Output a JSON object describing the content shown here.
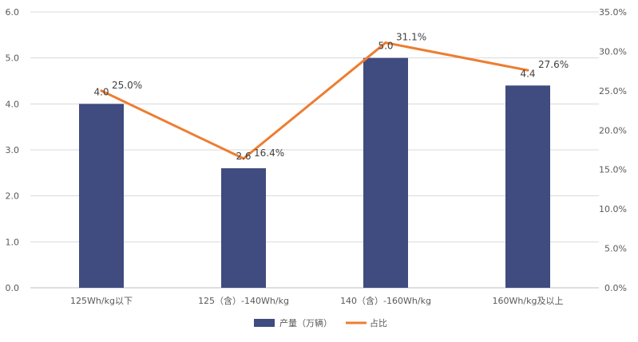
{
  "chart_data": {
    "type": "bar",
    "categories": [
      "125Wh/kg以下",
      "125（含）-140Wh/kg",
      "140（含）-160Wh/kg",
      "160Wh/kg及以上"
    ],
    "series": [
      {
        "name": "产量（万辆）",
        "type": "bar",
        "axis": "left",
        "color": "#404B7F",
        "values": [
          4.0,
          2.6,
          5.0,
          4.4
        ],
        "labels": [
          "4.0",
          "2.6",
          "5.0",
          "4.4"
        ]
      },
      {
        "name": "占比",
        "type": "line",
        "axis": "right",
        "color": "#ED7D31",
        "values": [
          25.0,
          16.4,
          31.1,
          27.6
        ],
        "labels": [
          "25.0%",
          "16.4%",
          "31.1%",
          "27.6%"
        ]
      }
    ],
    "ylim_left": [
      0,
      6
    ],
    "yticks_left": [
      "0.0",
      "1.0",
      "2.0",
      "3.0",
      "4.0",
      "5.0",
      "6.0"
    ],
    "ylim_right": [
      0,
      35
    ],
    "yticks_right": [
      "0.0%",
      "5.0%",
      "10.0%",
      "15.0%",
      "20.0%",
      "25.0%",
      "30.0%",
      "35.0%"
    ],
    "grid": true,
    "legend_position": "bottom"
  }
}
